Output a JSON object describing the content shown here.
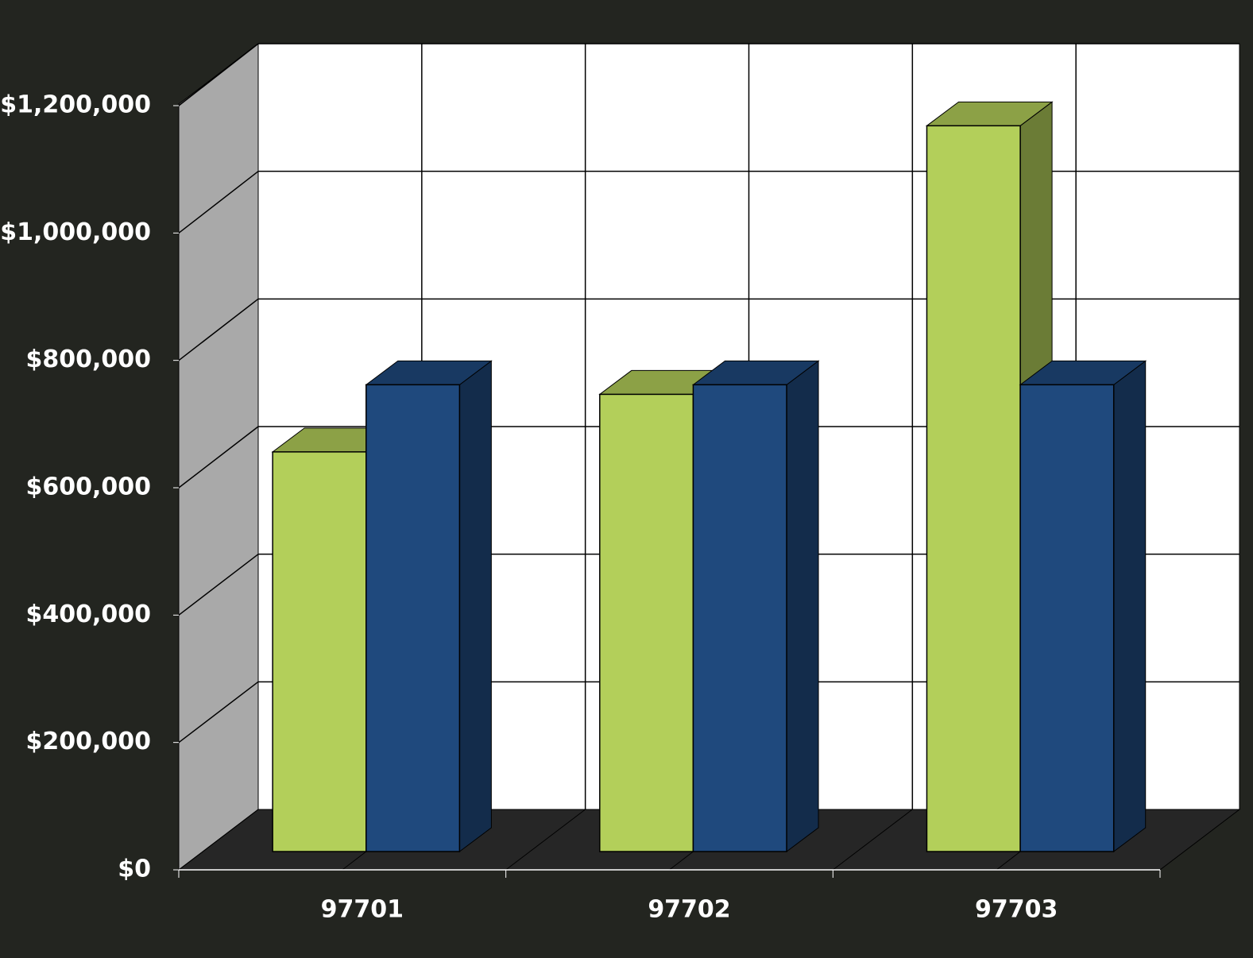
{
  "chart_data": {
    "type": "bar3d",
    "categories": [
      "97701",
      "97702",
      "97703"
    ],
    "series": [
      {
        "color": "#b3cf5a",
        "values": [
          625000,
          715000,
          1135000
        ]
      },
      {
        "color": "#1f497d",
        "values": [
          730000,
          730000,
          730000
        ]
      }
    ],
    "ylim": [
      0,
      1200000
    ],
    "yticks": [
      {
        "value": 0,
        "label": "$0"
      },
      {
        "value": 200000,
        "label": "$200,000"
      },
      {
        "value": 400000,
        "label": "$400,000"
      },
      {
        "value": 600000,
        "label": "$600,000"
      },
      {
        "value": 800000,
        "label": "$800,000"
      },
      {
        "value": 1000000,
        "label": "$1,000,000"
      },
      {
        "value": 1200000,
        "label": "$1,200,000"
      }
    ],
    "grid": true
  }
}
